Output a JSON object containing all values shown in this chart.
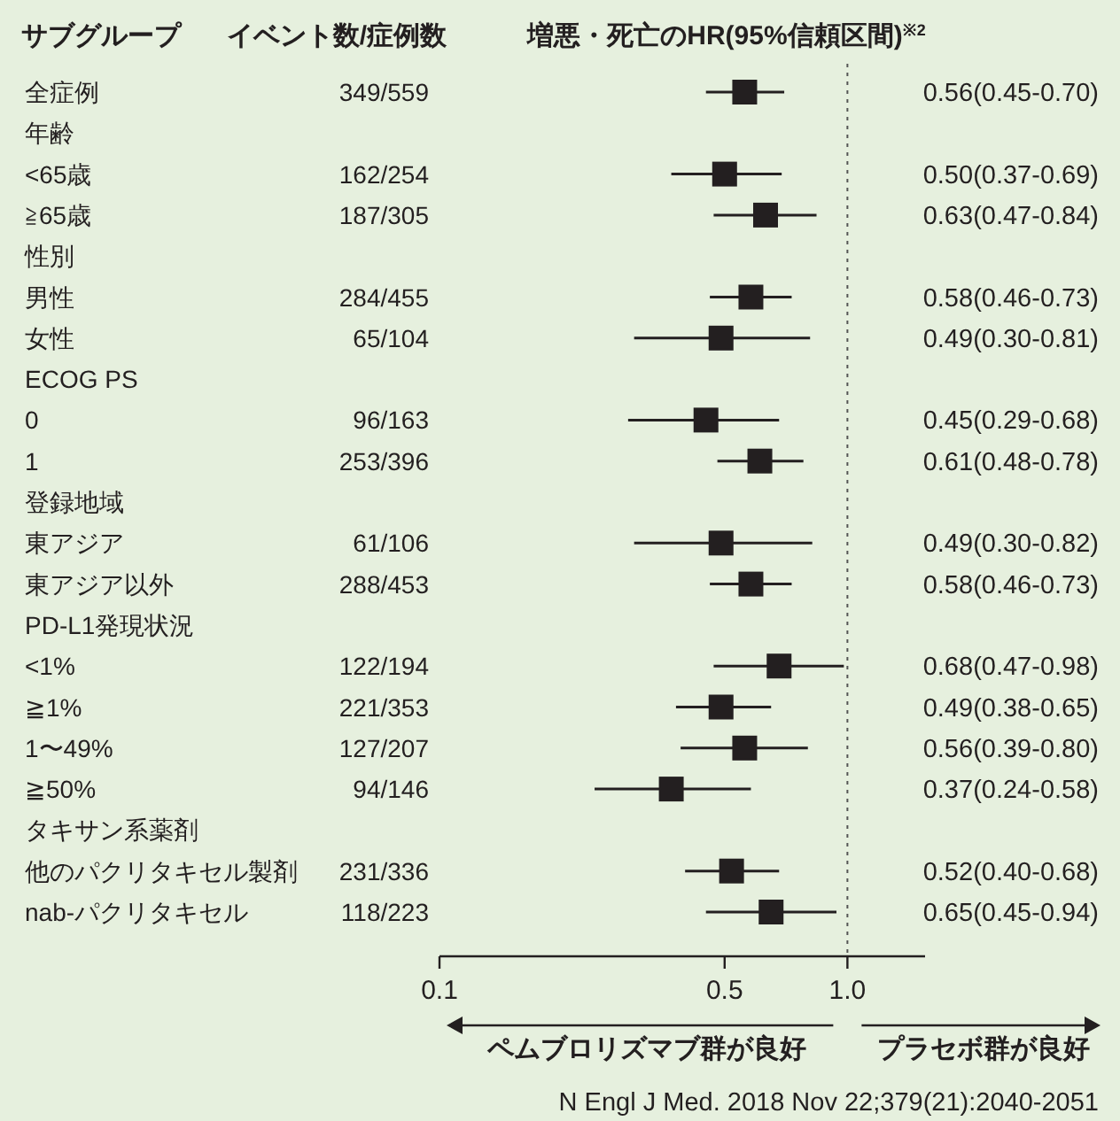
{
  "chart_data": {
    "type": "scatter",
    "orientation": "horizontal",
    "log": "x",
    "marker": "square",
    "ylabel": "サブグループ",
    "categories": [
      "全症例",
      "年齢",
      "<65歳",
      "≧65歳",
      "性別",
      "男性",
      "女性",
      "ECOG PS",
      "0",
      "1",
      "登録地域",
      "東アジア",
      "東アジア以外",
      "PD-L1発現状況",
      "<1%",
      "≧1%",
      "1〜49%",
      "≧50%",
      "タキサン系薬剤",
      "他のパクリタキセル製剤",
      "nab-パクリタキセル"
    ],
    "values": [
      0.56,
      null,
      0.5,
      0.63,
      null,
      0.58,
      0.49,
      null,
      0.45,
      0.61,
      null,
      0.49,
      0.58,
      null,
      0.68,
      0.49,
      0.56,
      0.37,
      null,
      0.52,
      0.65
    ],
    "errors": [
      [
        0.45,
        0.7
      ],
      null,
      [
        0.37,
        0.69
      ],
      [
        0.47,
        0.84
      ],
      null,
      [
        0.46,
        0.73
      ],
      [
        0.3,
        0.81
      ],
      null,
      [
        0.29,
        0.68
      ],
      [
        0.48,
        0.78
      ],
      null,
      [
        0.3,
        0.82
      ],
      [
        0.46,
        0.73
      ],
      null,
      [
        0.47,
        0.98
      ],
      [
        0.38,
        0.65
      ],
      [
        0.39,
        0.8
      ],
      [
        0.24,
        0.58
      ],
      null,
      [
        0.4,
        0.68
      ],
      [
        0.45,
        0.94
      ]
    ],
    "value_labels": [
      "0.56(0.45-0.70)",
      null,
      "0.50(0.37-0.69)",
      "0.63(0.47-0.84)",
      null,
      "0.58(0.46-0.73)",
      "0.49(0.30-0.81)",
      null,
      "0.45(0.29-0.68)",
      "0.61(0.48-0.78)",
      null,
      "0.49(0.30-0.82)",
      "0.58(0.46-0.73)",
      null,
      "0.68(0.47-0.98)",
      "0.49(0.38-0.65)",
      "0.56(0.39-0.80)",
      "0.37(0.24-0.58)",
      null,
      "0.52(0.40-0.68)",
      "0.65(0.45-0.94)"
    ],
    "color": "#231f20",
    "xlim": [
      0.1,
      1.55
    ],
    "xticks": [
      0.1,
      0.5,
      {
        "value": 1,
        "label": "1.0"
      }
    ],
    "ref_lines": [
      {
        "axis": "x",
        "value": 1,
        "line_style": "dotted",
        "color": "#555555"
      }
    ],
    "annotations": [
      "イベント数/症例数",
      "増悪・死亡のHR(95%信頼区間)$^{※2}$",
      "ペムブロリズマブ群が良好",
      "プラセボ群が良好",
      "N Engl J Med. 2018 Nov 22;379(21):2040-2051",
      "349/559",
      "162/254",
      "187/305",
      "284/455",
      "65/104",
      "96/163",
      "253/396",
      "61/106",
      "288/453",
      "122/194",
      "221/353",
      "127/207",
      "94/146",
      "231/336",
      "118/223"
    ]
  }
}
